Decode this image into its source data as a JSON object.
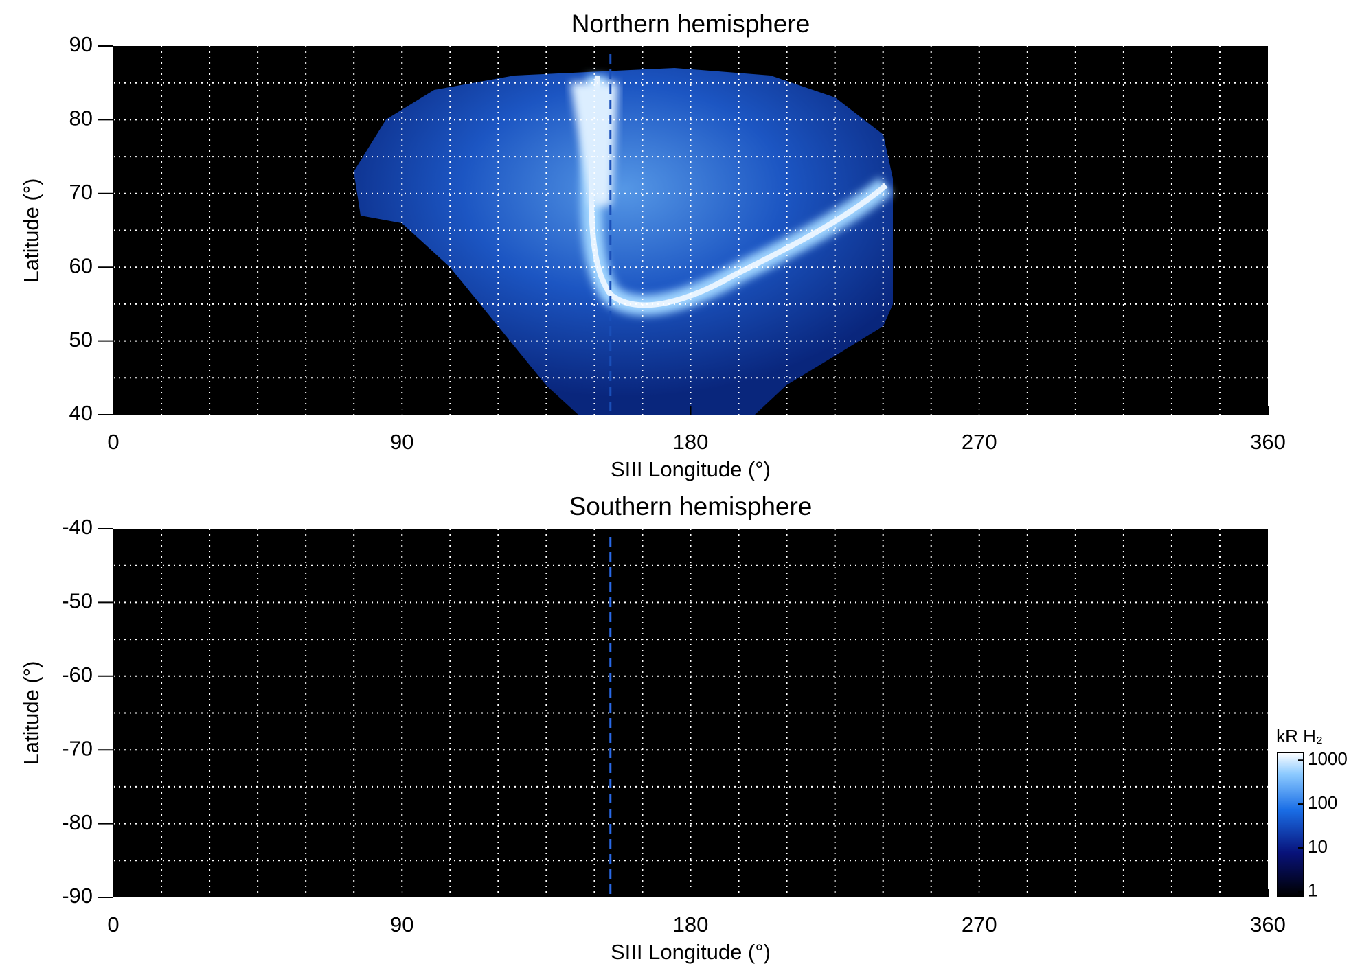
{
  "chart_data": [
    {
      "type": "image",
      "title": "Northern hemisphere",
      "x_label": "SIII Longitude (°)",
      "y_label": "Latitude (°)",
      "xlim": [
        0,
        360
      ],
      "xticks": [
        0,
        90,
        180,
        270,
        360
      ],
      "ylim": [
        40,
        90
      ],
      "yticks": [
        40,
        50,
        60,
        70,
        80,
        90
      ],
      "xgrid": [
        15,
        30,
        45,
        60,
        75,
        90,
        105,
        120,
        135,
        150,
        165,
        180,
        195,
        210,
        225,
        240,
        255,
        270,
        285,
        300,
        315,
        330,
        345
      ],
      "ygrid": [
        45,
        50,
        55,
        60,
        65,
        70,
        75,
        80,
        85
      ],
      "reference_longitude": 155,
      "reference_color": "#1a4fb8"
    },
    {
      "type": "image",
      "title": "Southern hemisphere",
      "x_label": "SIII Longitude (°)",
      "y_label": "Latitude (°)",
      "xlim": [
        0,
        360
      ],
      "xticks": [
        0,
        90,
        180,
        270,
        360
      ],
      "ylim": [
        -90,
        -40
      ],
      "yticks": [
        -90,
        -80,
        -70,
        -60,
        -50,
        -40
      ],
      "xgrid": [
        15,
        30,
        45,
        60,
        75,
        90,
        105,
        120,
        135,
        150,
        165,
        180,
        195,
        210,
        225,
        240,
        255,
        270,
        285,
        300,
        315,
        330,
        345
      ],
      "ygrid": [
        -85,
        -80,
        -75,
        -70,
        -65,
        -60,
        -55,
        -50,
        -45
      ],
      "reference_longitude": 155,
      "reference_color": "#2a6ae8"
    },
    {
      "type": "colorbar",
      "label": "kR H₂",
      "scale": "log",
      "lim": [
        0.8,
        1500
      ],
      "ticks": [
        1,
        10,
        100,
        1000
      ]
    }
  ]
}
